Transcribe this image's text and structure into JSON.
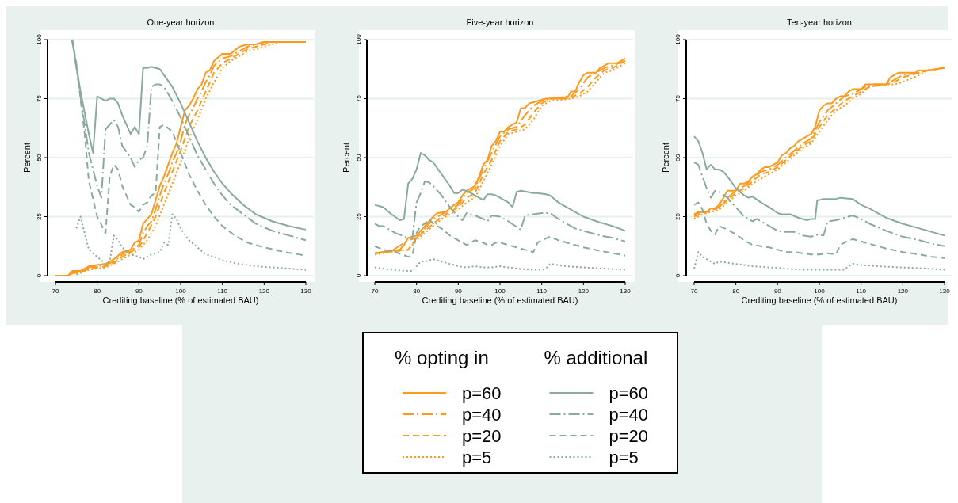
{
  "chart_data": [
    {
      "type": "line",
      "title": "One-year horizon",
      "xlabel": "Crediting baseline (% of estimated BAU)",
      "ylabel": "Percent",
      "xlim": [
        70,
        130
      ],
      "xticks": [
        70,
        80,
        90,
        100,
        110,
        120,
        130
      ],
      "ylim": [
        0,
        100
      ],
      "yticks": [
        0,
        25,
        50,
        75,
        100
      ],
      "grid": "y",
      "legend": false,
      "series": [
        {
          "color": "#fb9a1e",
          "line_style": "solid",
          "x": [
            70,
            73,
            74,
            76,
            78,
            80,
            82,
            84,
            86,
            88,
            89,
            90,
            91,
            92,
            93,
            94,
            95,
            96,
            97,
            98,
            99,
            100,
            101,
            102,
            103,
            104,
            105,
            106,
            107,
            108,
            110,
            112,
            114,
            116,
            118,
            120,
            130
          ],
          "values": [
            0,
            0,
            2,
            2,
            4,
            4.5,
            5,
            7,
            10,
            11,
            14,
            15,
            22,
            24,
            26,
            32,
            38,
            42,
            47,
            52,
            56,
            63,
            70,
            72,
            75,
            79,
            81,
            86,
            87,
            91,
            94,
            94,
            97,
            98,
            98,
            99,
            99
          ]
        },
        {
          "color": "#fb9a1e",
          "line_style": "dashdot",
          "x": [
            73,
            74,
            76,
            78,
            80,
            82,
            84,
            86,
            88,
            90,
            91,
            92,
            93,
            94,
            95,
            96,
            97,
            98,
            99,
            100,
            101,
            102,
            103,
            104,
            105,
            106,
            107,
            108,
            110,
            112,
            114,
            116,
            118,
            120,
            130
          ],
          "values": [
            0,
            1,
            2,
            3.5,
            4,
            4.5,
            6,
            9,
            10.5,
            13,
            18,
            21,
            23,
            28,
            34,
            39,
            43,
            48,
            52,
            57,
            64,
            68,
            71,
            75,
            78,
            82,
            85,
            89,
            92,
            93,
            95,
            97,
            98,
            99,
            99
          ]
        },
        {
          "color": "#fb9a1e",
          "line_style": "dashed",
          "x": [
            74,
            76,
            78,
            80,
            82,
            84,
            86,
            88,
            90,
            92,
            94,
            96,
            98,
            100,
            102,
            104,
            106,
            108,
            110,
            112,
            114,
            116,
            118,
            120,
            122,
            130
          ],
          "values": [
            1,
            1.5,
            3,
            3.5,
            4,
            5.5,
            8,
            10,
            12,
            18,
            25,
            35,
            44,
            53,
            63,
            70,
            78,
            86,
            90,
            92,
            94,
            96,
            97,
            98,
            99,
            99
          ]
        },
        {
          "color": "#fb9a1e",
          "line_style": "dotted",
          "x": [
            75,
            78,
            80,
            82,
            84,
            86,
            88,
            90,
            92,
            94,
            96,
            98,
            100,
            102,
            104,
            106,
            108,
            110,
            112,
            114,
            116,
            118,
            120,
            122,
            124,
            130
          ],
          "values": [
            0.5,
            2.5,
            3,
            3.5,
            5,
            7,
            9,
            11,
            15,
            21,
            30,
            39,
            48,
            58,
            66,
            75,
            82,
            88,
            91,
            93,
            95,
            96,
            97,
            98,
            99,
            99
          ]
        },
        {
          "color": "#8aa9a0",
          "line_style": "solid",
          "x": [
            74,
            76,
            78,
            79,
            80,
            82,
            83,
            84,
            85,
            86,
            88,
            89,
            90,
            91,
            92,
            93,
            95,
            96,
            98,
            100,
            102,
            104,
            106,
            108,
            110,
            112,
            115,
            118,
            122,
            126,
            130
          ],
          "values": [
            100,
            78,
            60,
            52,
            76,
            74,
            75,
            75,
            73,
            68,
            60,
            63,
            60,
            88,
            88,
            88.5,
            87.5,
            85,
            80,
            73,
            65,
            57,
            50,
            44,
            39,
            35,
            30,
            26,
            23,
            21,
            19.5
          ]
        },
        {
          "color": "#8aa9a0",
          "line_style": "dashdot",
          "x": [
            74,
            76,
            78,
            80,
            81,
            82,
            83,
            84,
            85,
            86,
            88,
            89,
            90,
            91,
            92,
            93,
            94,
            95,
            96,
            98,
            100,
            102,
            104,
            106,
            108,
            110,
            112,
            115,
            118,
            122,
            126,
            130
          ],
          "values": [
            100,
            76,
            52,
            38,
            33,
            62,
            64,
            66,
            63,
            55,
            50,
            46,
            49,
            50,
            55,
            80,
            81,
            81,
            80,
            74,
            67,
            59,
            51,
            45,
            39,
            34,
            30,
            26,
            22,
            19,
            17,
            15
          ]
        },
        {
          "color": "#8aa9a0",
          "line_style": "dashed",
          "x": [
            74,
            75,
            76,
            77,
            78,
            80,
            82,
            83,
            84,
            85,
            86,
            88,
            89,
            90,
            91,
            92,
            93,
            94,
            95,
            96,
            98,
            100,
            102,
            104,
            106,
            108,
            110,
            113,
            116,
            120,
            125,
            130
          ],
          "values": [
            100,
            90,
            75,
            60,
            40,
            25,
            18,
            42,
            47,
            45,
            38,
            30,
            29,
            27,
            30,
            31,
            34,
            35,
            63,
            64,
            61,
            52,
            43,
            36,
            30,
            25,
            21,
            17,
            14,
            12,
            10,
            8.5
          ]
        },
        {
          "color": "#8aa9a0",
          "line_style": "dotted",
          "x": [
            75,
            76,
            77,
            78,
            80,
            82,
            83,
            84,
            85,
            86,
            88,
            90,
            91,
            93,
            95,
            96,
            97,
            98,
            99,
            100,
            102,
            104,
            106,
            108,
            110,
            114,
            118,
            122,
            126,
            130
          ],
          "values": [
            20,
            25,
            18,
            11,
            8,
            5,
            6,
            17,
            15,
            12,
            9,
            8,
            7,
            9,
            10,
            14,
            13,
            26,
            24,
            20,
            15,
            12,
            9,
            8,
            6.5,
            5,
            4,
            3.5,
            3,
            2.5
          ]
        }
      ]
    },
    {
      "type": "line",
      "title": "Five-year horizon",
      "xlabel": "Crediting baseline (% of estimated BAU)",
      "ylabel": "Percent",
      "xlim": [
        70,
        130
      ],
      "xticks": [
        70,
        80,
        90,
        100,
        110,
        120,
        130
      ],
      "ylim": [
        0,
        100
      ],
      "yticks": [
        0,
        25,
        50,
        75,
        100
      ],
      "grid": "y",
      "legend": "bottom",
      "annotations": [
        "% opting in",
        "% additional"
      ],
      "series": [
        {
          "name": "p=60",
          "color": "#fb9a1e",
          "line_style": "solid",
          "x": [
            70,
            72,
            74,
            76,
            77,
            78,
            80,
            82,
            84,
            85,
            87,
            89,
            90,
            91,
            92,
            94,
            95,
            96,
            97,
            98,
            99,
            100,
            101,
            102,
            104,
            105,
            106,
            107,
            109,
            111,
            116,
            117,
            118,
            119,
            120,
            121,
            123,
            124,
            125,
            126,
            128,
            129,
            130
          ],
          "values": [
            9.5,
            10,
            10.5,
            11,
            13,
            16,
            17,
            21,
            25,
            26.5,
            27,
            30,
            31,
            34,
            36,
            38,
            42,
            47,
            49,
            55,
            57,
            61,
            61,
            63,
            65,
            71,
            71,
            73,
            74,
            75,
            75,
            78,
            78,
            82,
            85,
            86,
            86,
            88,
            89,
            90,
            90,
            91,
            92
          ]
        },
        {
          "name": "p=40",
          "color": "#fb9a1e",
          "line_style": "dashdot",
          "x": [
            70,
            74,
            78,
            80,
            82,
            84,
            86,
            88,
            90,
            92,
            94,
            96,
            98,
            100,
            102,
            104,
            106,
            108,
            110,
            112,
            117,
            119,
            121,
            123,
            125,
            127,
            130
          ],
          "values": [
            9.5,
            10.5,
            15,
            16,
            20,
            24,
            26,
            28,
            30,
            35,
            37,
            45,
            52,
            59,
            62,
            63,
            68,
            72,
            74,
            75,
            76,
            79,
            84,
            86,
            88,
            89,
            91
          ]
        },
        {
          "name": "p=20",
          "color": "#fb9a1e",
          "line_style": "dashed",
          "x": [
            70,
            78,
            80,
            82,
            84,
            86,
            88,
            90,
            92,
            94,
            96,
            98,
            100,
            102,
            104,
            106,
            108,
            110,
            112,
            117,
            119,
            121,
            123,
            125,
            127,
            130
          ],
          "values": [
            9.5,
            11,
            16,
            19,
            22,
            25,
            27,
            29,
            33,
            35,
            43,
            49,
            57,
            61,
            62,
            64,
            69,
            73,
            75,
            75.5,
            77,
            80,
            84,
            87,
            88,
            91
          ]
        },
        {
          "name": "p=5",
          "color": "#fb9a1e",
          "line_style": "dotted",
          "x": [
            70,
            78,
            80,
            82,
            84,
            86,
            88,
            90,
            92,
            94,
            96,
            98,
            100,
            102,
            104,
            106,
            108,
            110,
            112,
            117,
            119,
            121,
            123,
            125,
            127,
            130
          ],
          "values": [
            9,
            11,
            15,
            18,
            21,
            24,
            26,
            28,
            31,
            33,
            40,
            47,
            55,
            60,
            61,
            62,
            66,
            72,
            74,
            75,
            76,
            78,
            82,
            86,
            87,
            90
          ]
        },
        {
          "name": "p=60",
          "color": "#8aa9a0",
          "line_style": "solid",
          "x": [
            70,
            72,
            74,
            76,
            77,
            78,
            79,
            80,
            81,
            82,
            83,
            84,
            86,
            88,
            89,
            90,
            91,
            93,
            95,
            96,
            97,
            98,
            99,
            100,
            102,
            103,
            104,
            105,
            108,
            109,
            111,
            112,
            114,
            116,
            118,
            120,
            124,
            127,
            130
          ],
          "values": [
            30,
            29,
            26,
            23.5,
            24,
            39,
            41,
            45,
            52,
            51,
            49,
            48,
            43,
            38,
            35,
            35,
            36.5,
            35,
            33,
            32,
            34.5,
            34.5,
            34,
            33,
            31,
            29,
            35.5,
            36,
            35,
            35,
            34.5,
            34,
            31,
            29,
            27,
            25,
            22.5,
            21,
            19
          ]
        },
        {
          "name": "p=40",
          "color": "#8aa9a0",
          "line_style": "dashdot",
          "x": [
            70,
            71,
            72,
            75,
            78,
            79,
            80,
            81,
            82,
            83,
            84,
            86,
            88,
            90,
            91,
            92,
            94,
            96,
            97,
            98,
            100,
            102,
            105,
            106,
            108,
            110,
            112,
            114,
            116,
            118,
            120,
            124,
            127,
            130
          ],
          "values": [
            22,
            21,
            21,
            18,
            16,
            16,
            31,
            35,
            40,
            39.5,
            38,
            34,
            29,
            25,
            23.5,
            26.5,
            25.5,
            24,
            23,
            25.5,
            25,
            23,
            19.5,
            25.5,
            26,
            26.5,
            26.5,
            24,
            22,
            20,
            19,
            17,
            16,
            14.5
          ]
        },
        {
          "name": "p=20",
          "color": "#8aa9a0",
          "line_style": "dashed",
          "x": [
            70,
            72,
            75,
            78,
            79,
            80,
            81,
            82,
            83,
            84,
            86,
            88,
            90,
            92,
            93,
            94,
            96,
            97,
            98,
            99,
            100,
            102,
            104,
            108,
            109,
            110,
            112,
            114,
            116,
            120,
            124,
            127,
            130
          ],
          "values": [
            12.5,
            11,
            10,
            8,
            8.5,
            18,
            21,
            22,
            24,
            22,
            20,
            17,
            15,
            13,
            14,
            15,
            14,
            13,
            13,
            14,
            14,
            13,
            12,
            10,
            14,
            15,
            16.5,
            15,
            14,
            12,
            10.5,
            9.5,
            8.5
          ]
        },
        {
          "name": "p=5",
          "color": "#8aa9a0",
          "line_style": "dotted",
          "x": [
            70,
            74,
            78,
            79,
            80,
            81,
            82,
            84,
            86,
            88,
            90,
            92,
            94,
            96,
            98,
            100,
            104,
            108,
            110,
            111,
            112,
            114,
            116,
            120,
            125,
            130
          ],
          "values": [
            3.5,
            2.5,
            2,
            2,
            4,
            6,
            6,
            7,
            6,
            5,
            4,
            3.5,
            4,
            3.5,
            3.5,
            4,
            3,
            2.5,
            2.5,
            3,
            5,
            4.5,
            4,
            3.5,
            3,
            2.5
          ]
        }
      ]
    },
    {
      "type": "line",
      "title": "Ten-year horizon",
      "xlabel": "Crediting baseline (% of estimated BAU)",
      "ylabel": "Percent",
      "xlim": [
        70,
        130
      ],
      "xticks": [
        70,
        80,
        90,
        100,
        110,
        120,
        130
      ],
      "ylim": [
        0,
        100
      ],
      "yticks": [
        0,
        25,
        50,
        75,
        100
      ],
      "grid": "y",
      "legend": false,
      "series": [
        {
          "color": "#fb9a1e",
          "line_style": "solid",
          "x": [
            70,
            71,
            73,
            74,
            75,
            76,
            77,
            78,
            80,
            81,
            82,
            83,
            84,
            85,
            86,
            87,
            88,
            90,
            91,
            92,
            93,
            94,
            95,
            97,
            98,
            99,
            100,
            101,
            102,
            103,
            104,
            105,
            106,
            107,
            108,
            110,
            111,
            116,
            117,
            119,
            120,
            123,
            124,
            128,
            129,
            130
          ],
          "values": [
            26,
            27,
            27,
            28.5,
            28.5,
            30,
            33,
            36,
            36,
            39,
            39,
            40,
            42,
            43,
            45,
            46,
            46,
            48,
            51,
            52,
            54,
            55,
            57,
            59,
            60,
            63,
            70,
            72,
            73,
            73,
            75,
            76,
            76,
            78,
            79,
            79,
            81,
            81,
            84,
            86,
            86,
            86,
            87,
            87,
            88,
            88
          ]
        },
        {
          "color": "#fb9a1e",
          "line_style": "dashdot",
          "x": [
            70,
            72,
            74,
            76,
            78,
            80,
            82,
            84,
            86,
            88,
            90,
            92,
            94,
            96,
            98,
            100,
            102,
            104,
            106,
            108,
            110,
            112,
            116,
            118,
            120,
            124,
            126,
            130
          ],
          "values": [
            26,
            27,
            28,
            29,
            33,
            36,
            38,
            41,
            44,
            45,
            47,
            50,
            53,
            56,
            58,
            65,
            70,
            73,
            76,
            77,
            79,
            81,
            81,
            83,
            85,
            86,
            87,
            88
          ]
        },
        {
          "color": "#fb9a1e",
          "line_style": "dashed",
          "x": [
            70,
            72,
            74,
            76,
            78,
            80,
            82,
            84,
            86,
            88,
            90,
            92,
            94,
            96,
            98,
            100,
            102,
            104,
            106,
            108,
            110,
            112,
            116,
            118,
            120,
            124,
            126,
            130
          ],
          "values": [
            25,
            26.5,
            27.5,
            29,
            32,
            35,
            37,
            40,
            43,
            44,
            46,
            49,
            52,
            55,
            57,
            63,
            68,
            71,
            74,
            76,
            78,
            80,
            81,
            82,
            84,
            86,
            87,
            88
          ]
        },
        {
          "color": "#fb9a1e",
          "line_style": "dotted",
          "x": [
            70,
            72,
            74,
            76,
            78,
            80,
            82,
            84,
            86,
            88,
            90,
            92,
            94,
            96,
            98,
            100,
            102,
            104,
            106,
            108,
            110,
            112,
            116,
            118,
            120,
            124,
            126,
            130
          ],
          "values": [
            24,
            26,
            27,
            28,
            31,
            34,
            36,
            39,
            41,
            43,
            45,
            48,
            51,
            54,
            56,
            61,
            66,
            70,
            72,
            75,
            77,
            80,
            81,
            81,
            82,
            85,
            87,
            88
          ]
        },
        {
          "color": "#8aa9a0",
          "line_style": "solid",
          "x": [
            70,
            71,
            72,
            73,
            74,
            75,
            76,
            77,
            78,
            80,
            82,
            83,
            84,
            86,
            88,
            90,
            91,
            93,
            95,
            96,
            97,
            98,
            99,
            99.5,
            100,
            101,
            104,
            105,
            108,
            110,
            112,
            114,
            116,
            120,
            124,
            127,
            130
          ],
          "values": [
            59,
            57,
            52,
            45,
            47,
            45,
            45,
            44,
            42,
            37,
            34,
            33,
            33.5,
            31,
            29,
            26.5,
            26,
            26,
            24.5,
            24,
            23.5,
            24,
            24,
            32,
            32,
            32.5,
            32.5,
            33,
            32.5,
            30,
            28.5,
            26.5,
            24.5,
            22,
            20,
            18.5,
            17
          ]
        },
        {
          "color": "#8aa9a0",
          "line_style": "dashdot",
          "x": [
            70,
            71,
            72,
            73,
            74,
            75,
            76,
            78,
            80,
            82,
            84,
            85,
            86,
            88,
            90,
            92,
            94,
            96,
            98,
            100,
            101,
            102,
            104,
            106,
            108,
            110,
            112,
            116,
            120,
            124,
            127,
            130
          ],
          "values": [
            48,
            47,
            42,
            37,
            33,
            36,
            35.5,
            33,
            29,
            25,
            23,
            24,
            23,
            21,
            19,
            18.5,
            18.5,
            17,
            16.5,
            17.5,
            17,
            23,
            23.5,
            24.5,
            25.5,
            24,
            22,
            19,
            16.5,
            15,
            13.5,
            12.5
          ]
        },
        {
          "color": "#8aa9a0",
          "line_style": "dashed",
          "x": [
            70,
            71,
            72,
            73,
            74,
            75,
            76,
            78,
            80,
            82,
            84,
            86,
            88,
            90,
            92,
            94,
            96,
            98,
            100,
            102,
            104,
            105,
            106,
            108,
            110,
            112,
            116,
            120,
            124,
            127,
            130
          ],
          "values": [
            30,
            31,
            28,
            22,
            19,
            17.5,
            21,
            19.5,
            17.5,
            15,
            13,
            12.5,
            12,
            11,
            10,
            10,
            9.5,
            9,
            9,
            9.5,
            9,
            13,
            14,
            15.5,
            14.5,
            13.5,
            11.5,
            10,
            9,
            8,
            7.5
          ]
        },
        {
          "color": "#8aa9a0",
          "line_style": "dotted",
          "x": [
            70,
            71,
            72,
            74,
            75,
            76,
            80,
            84,
            88,
            92,
            96,
            100,
            104,
            106,
            107,
            108,
            110,
            114,
            120,
            126,
            130
          ],
          "values": [
            3,
            10,
            8,
            6,
            5,
            6,
            5,
            4,
            3.5,
            3,
            2.5,
            2.5,
            2.5,
            2.5,
            4,
            5,
            4.5,
            4,
            3.5,
            3,
            2.5
          ]
        }
      ]
    }
  ]
}
